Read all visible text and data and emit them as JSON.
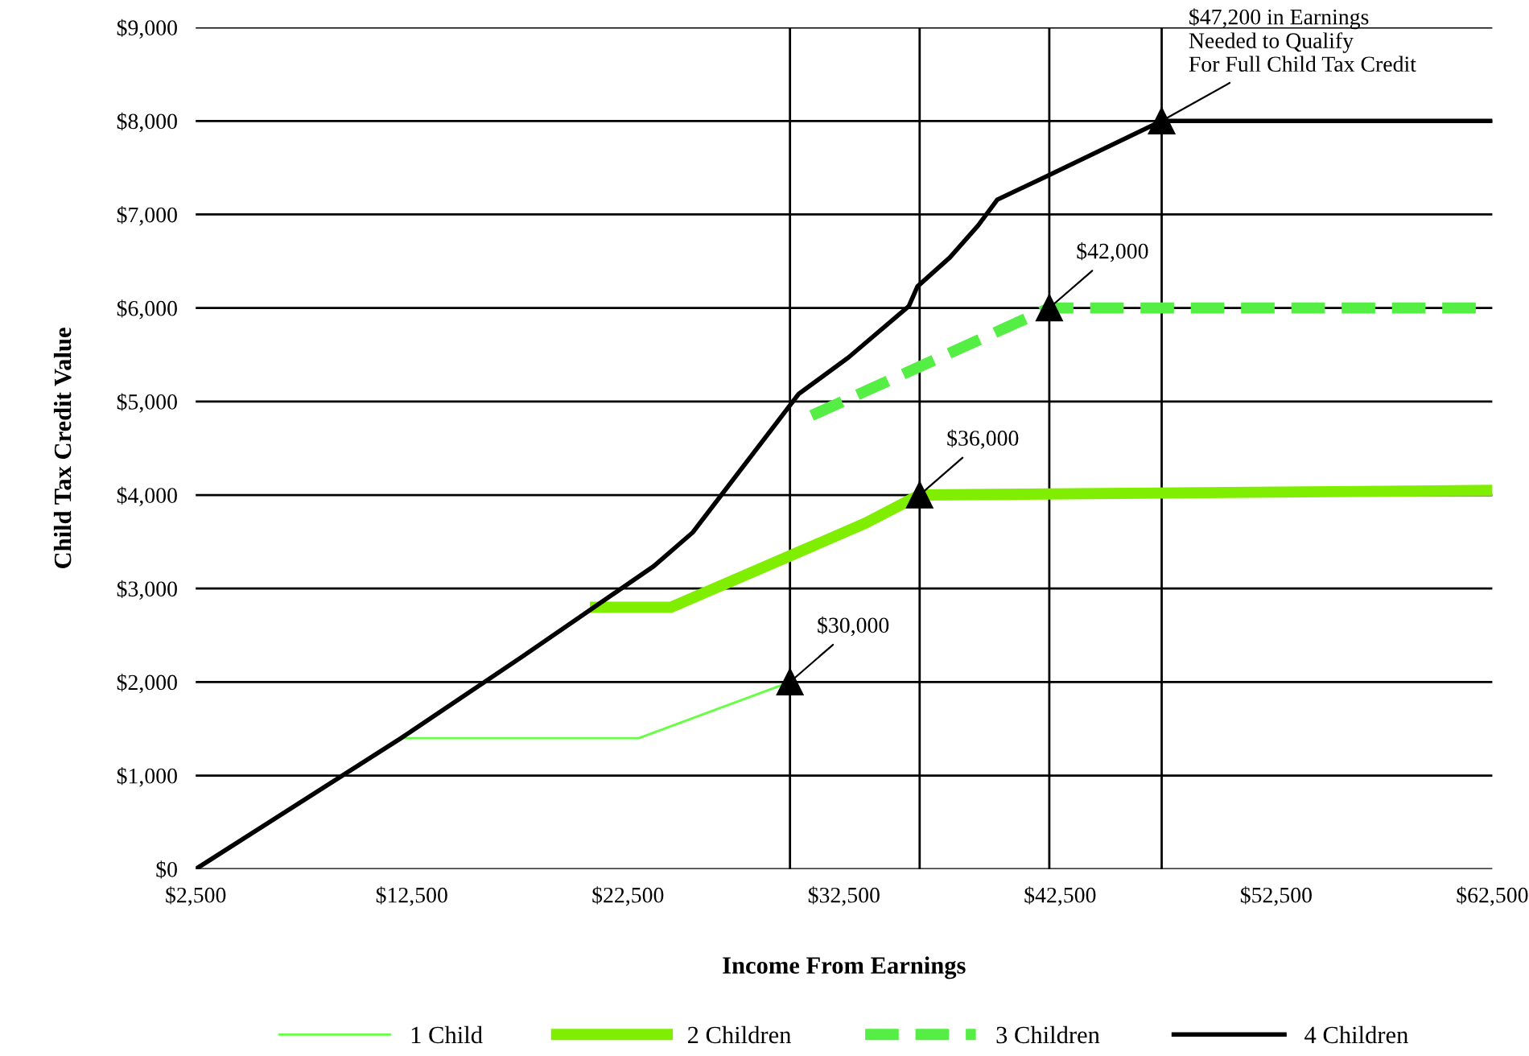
{
  "chart_data": {
    "type": "line",
    "xlabel": "Income From Earnings",
    "ylabel": "Child Tax Credit Value",
    "xlim": [
      2500,
      62500
    ],
    "ylim": [
      0,
      9000
    ],
    "xticks": [
      {
        "value": 2500,
        "label": "$2,500"
      },
      {
        "value": 12500,
        "label": "$12,500"
      },
      {
        "value": 22500,
        "label": "$22,500"
      },
      {
        "value": 32500,
        "label": "$32,500"
      },
      {
        "value": 42500,
        "label": "$42,500"
      },
      {
        "value": 52500,
        "label": "$52,500"
      },
      {
        "value": 62500,
        "label": "$62,500"
      }
    ],
    "yticks": [
      {
        "value": 0,
        "label": "$0"
      },
      {
        "value": 1000,
        "label": "$1,000"
      },
      {
        "value": 2000,
        "label": "$2,000"
      },
      {
        "value": 3000,
        "label": "$3,000"
      },
      {
        "value": 4000,
        "label": "$4,000"
      },
      {
        "value": 5000,
        "label": "$5,000"
      },
      {
        "value": 6000,
        "label": "$6,000"
      },
      {
        "value": 7000,
        "label": "$7,000"
      },
      {
        "value": 8000,
        "label": "$8,000"
      },
      {
        "value": 9000,
        "label": "$9,000"
      }
    ],
    "grid": "y",
    "legend": "bottom",
    "marker": "none",
    "series": [
      {
        "name": "1 Child",
        "color": "#66ff44",
        "line_style": "solid",
        "x": [
          12000,
          23000,
          30000
        ],
        "values": [
          1400,
          1400,
          2000
        ]
      },
      {
        "name": "2 Children",
        "color": "#80ee00",
        "line_style": "solid",
        "x": [
          21000,
          24500,
          33500,
          36000,
          62500
        ],
        "values": [
          2800,
          2800,
          3700,
          4000,
          4050
        ]
      },
      {
        "name": "3 Children",
        "color": "#55ee44",
        "line_style": "dashed",
        "x": [
          31000,
          42000,
          62500
        ],
        "values": [
          4850,
          6000,
          6000
        ]
      },
      {
        "name": "4 Children",
        "color": "#000000",
        "line_style": "solid",
        "x": [
          2500,
          12000,
          17600,
          23700,
          25500,
          30400,
          32700,
          35500,
          35900,
          37400,
          38700,
          39600,
          41800,
          47200,
          62500
        ],
        "values": [
          0,
          1400,
          2270,
          3240,
          3600,
          5080,
          5470,
          6020,
          6230,
          6540,
          6880,
          7160,
          7400,
          8000,
          8000
        ]
      }
    ],
    "ref_lines": [
      {
        "axis": "x",
        "value": 30000,
        "color": "#000000"
      },
      {
        "axis": "x",
        "value": 36000,
        "color": "#000000"
      },
      {
        "axis": "x",
        "value": 42000,
        "color": "#000000"
      },
      {
        "axis": "x",
        "value": 47200,
        "color": "#000000"
      }
    ],
    "annotations": [
      {
        "text": "$30,000",
        "x": 30000,
        "y": 2000
      },
      {
        "text": "$36,000",
        "x": 36000,
        "y": 4000
      },
      {
        "text": "$42,000",
        "x": 42000,
        "y": 6000
      },
      {
        "text": "$47,200 in Earnings\nNeeded to Qualify\nFor Full Child Tax Credit",
        "x": 47200,
        "y": 8000
      }
    ]
  }
}
